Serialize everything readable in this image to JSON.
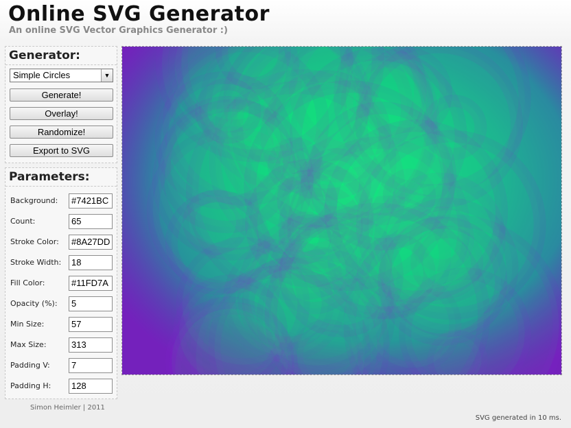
{
  "header": {
    "title": "Online SVG Generator",
    "subtitle": "An online SVG Vector Graphics Generator :)"
  },
  "generator_panel": {
    "heading": "Generator:",
    "selected_generator": "Simple Circles",
    "buttons": {
      "generate": "Generate!",
      "overlay": "Overlay!",
      "randomize": "Randomize!",
      "export": "Export to SVG"
    }
  },
  "parameters_panel": {
    "heading": "Parameters:",
    "params": [
      {
        "label": "Background:",
        "value": "#7421BC"
      },
      {
        "label": "Count:",
        "value": "65"
      },
      {
        "label": "Stroke Color:",
        "value": "#8A27DD"
      },
      {
        "label": "Stroke Width:",
        "value": "18"
      },
      {
        "label": "Fill Color:",
        "value": "#11FD7A"
      },
      {
        "label": "Opacity (%):",
        "value": "5"
      },
      {
        "label": "Min Size:",
        "value": "57"
      },
      {
        "label": "Max Size:",
        "value": "313"
      },
      {
        "label": "Padding V:",
        "value": "7"
      },
      {
        "label": "Padding H:",
        "value": "128"
      }
    ]
  },
  "footer": {
    "credit": "Simon Heimler | 2011",
    "status": "SVG generated in 10 ms."
  },
  "colors": {
    "background": "#7421BC",
    "stroke": "#8A27DD",
    "fill": "#11FD7A"
  },
  "icons": {
    "dropdown": "chevron-down-icon"
  }
}
